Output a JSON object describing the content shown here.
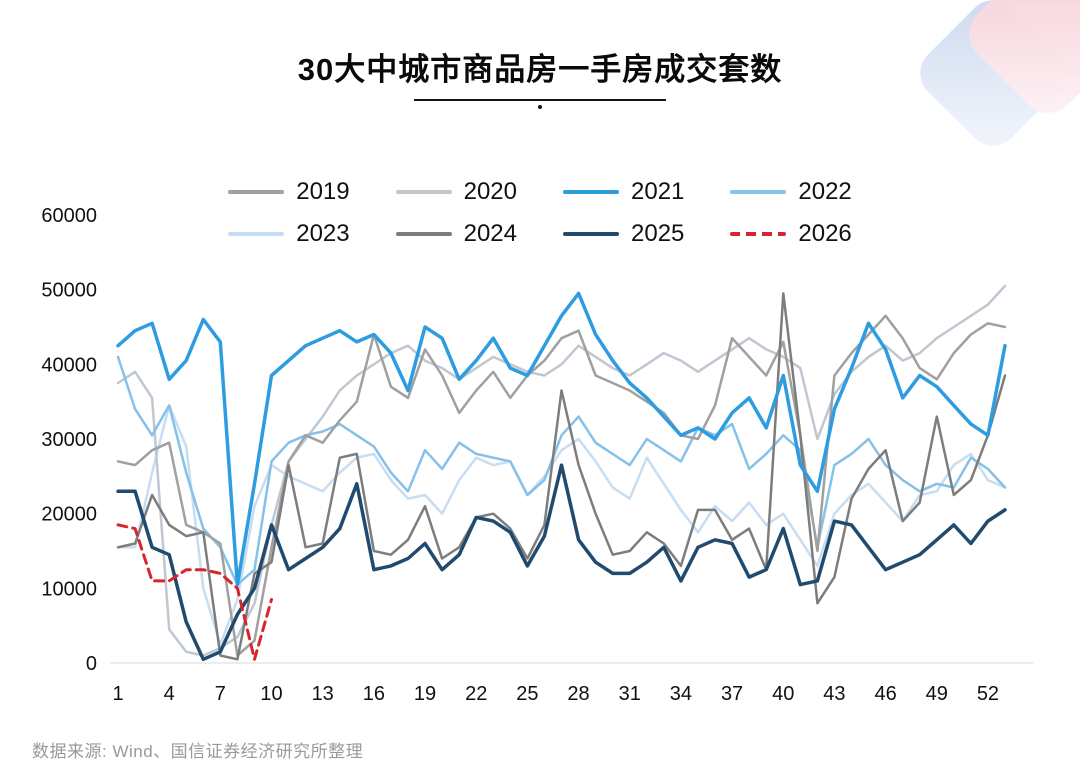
{
  "page": {
    "title": "30大中城市商品房一手房成交套数",
    "footer": "数据来源: Wind、国信证券经济研究所整理"
  },
  "chart_data": {
    "type": "line",
    "title": "30大中城市商品房一手房成交套数",
    "xlabel": "",
    "ylabel": "",
    "x_range": [
      1,
      53
    ],
    "ylim": [
      0,
      60000
    ],
    "yticks": [
      0,
      10000,
      20000,
      30000,
      40000,
      50000,
      60000
    ],
    "xticks": [
      1,
      4,
      7,
      10,
      13,
      16,
      19,
      22,
      25,
      28,
      31,
      34,
      37,
      40,
      43,
      46,
      49,
      52
    ],
    "grid": false,
    "legend_position": "top",
    "series": [
      {
        "name": "2019",
        "color": "#a0a0a0",
        "dashed": false,
        "width": 2.5,
        "z": 4,
        "values": [
          27000,
          26500,
          28500,
          29500,
          18500,
          17500,
          16000,
          1000,
          3000,
          15500,
          27000,
          30500,
          29500,
          32500,
          35000,
          44000,
          37000,
          35500,
          42000,
          38500,
          33500,
          36500,
          39000,
          35500,
          38500,
          40500,
          43500,
          44500,
          38500,
          37500,
          36500,
          35000,
          33500,
          30500,
          30000,
          34500,
          43500,
          41000,
          38500,
          43000,
          30500,
          15000,
          38500,
          41500,
          44000,
          46500,
          43500,
          39500,
          38000,
          41500,
          44000,
          45500,
          45000
        ]
      },
      {
        "name": "2020",
        "color": "#bfc7d1",
        "dashed": false,
        "width": 2.5,
        "z": 2,
        "values": [
          37500,
          39000,
          35500,
          4500,
          1500,
          1000,
          2000,
          3500,
          8000,
          18500,
          27000,
          30000,
          33000,
          36500,
          38500,
          40000,
          41500,
          42500,
          40500,
          39500,
          38000,
          39500,
          41000,
          40000,
          39000,
          38500,
          40000,
          42500,
          41000,
          39500,
          38500,
          40000,
          41500,
          40500,
          39000,
          40500,
          42000,
          43500,
          42000,
          41000,
          39500,
          30000,
          36000,
          39000,
          41000,
          42500,
          40500,
          41500,
          43500,
          45000,
          46500,
          48000,
          50500
        ]
      },
      {
        "name": "2021",
        "color": "#2d9ce0",
        "dashed": false,
        "width": 3.5,
        "z": 6,
        "values": [
          42500,
          44500,
          45500,
          38000,
          40500,
          46000,
          43000,
          10500,
          24000,
          38500,
          40500,
          42500,
          43500,
          44500,
          43000,
          44000,
          41500,
          36500,
          45000,
          43500,
          38000,
          40500,
          43500,
          39500,
          38500,
          42500,
          46500,
          49500,
          44000,
          40500,
          37500,
          35500,
          33000,
          30500,
          31500,
          30000,
          33500,
          35500,
          31500,
          38500,
          26500,
          23000,
          34000,
          39500,
          45500,
          42000,
          35500,
          38500,
          37000,
          34500,
          32000,
          30500,
          42500
        ]
      },
      {
        "name": "2022",
        "color": "#85c1e8",
        "dashed": false,
        "width": 2.5,
        "z": 3,
        "values": [
          41000,
          34000,
          30500,
          34500,
          25500,
          18000,
          15500,
          10500,
          12500,
          27000,
          29500,
          30500,
          31000,
          32000,
          30500,
          29000,
          25500,
          23000,
          28500,
          26000,
          29500,
          28000,
          27500,
          27000,
          22500,
          24500,
          30500,
          33000,
          29500,
          28000,
          26500,
          30000,
          28500,
          27000,
          31500,
          30500,
          32000,
          26000,
          28000,
          30500,
          28500,
          15500,
          26500,
          28000,
          30000,
          26500,
          24500,
          23000,
          24000,
          23500,
          27500,
          26000,
          23500
        ]
      },
      {
        "name": "2023",
        "color": "#c7ddf1",
        "dashed": false,
        "width": 2.5,
        "z": 1,
        "values": [
          15500,
          15500,
          25500,
          34500,
          29000,
          10000,
          2500,
          8500,
          21000,
          26500,
          25000,
          24000,
          23000,
          25500,
          27500,
          28000,
          24500,
          22000,
          22500,
          20000,
          24500,
          27500,
          26500,
          27000,
          22500,
          25000,
          28500,
          30000,
          27000,
          23500,
          22000,
          27500,
          24000,
          20500,
          17500,
          21000,
          19000,
          21500,
          18500,
          20000,
          16500,
          13000,
          20000,
          22500,
          24000,
          21500,
          19000,
          22500,
          23000,
          26500,
          28000,
          24500,
          23500
        ]
      },
      {
        "name": "2024",
        "color": "#7d7d7d",
        "dashed": false,
        "width": 2.5,
        "z": 5,
        "values": [
          15500,
          16000,
          22500,
          18500,
          17000,
          17500,
          1000,
          500,
          12000,
          13500,
          26500,
          15500,
          16000,
          27500,
          28000,
          15000,
          14500,
          16500,
          21000,
          14000,
          15500,
          19500,
          20000,
          18000,
          14000,
          18500,
          36500,
          26500,
          20000,
          14500,
          15000,
          17500,
          16000,
          13000,
          20500,
          20500,
          16500,
          18000,
          12500,
          49500,
          30500,
          8000,
          11500,
          22000,
          26000,
          28500,
          19000,
          21500,
          33000,
          22500,
          24500,
          30500,
          38500
        ]
      },
      {
        "name": "2025",
        "color": "#214a6f",
        "dashed": false,
        "width": 3.5,
        "z": 7,
        "values": [
          23000,
          23000,
          15500,
          14500,
          5500,
          500,
          1500,
          6500,
          10000,
          18500,
          12500,
          14000,
          15500,
          18000,
          24000,
          12500,
          13000,
          14000,
          16000,
          12500,
          14500,
          19500,
          19000,
          17500,
          13000,
          17000,
          26500,
          16500,
          13500,
          12000,
          12000,
          13500,
          15500,
          11000,
          15500,
          16500,
          16000,
          11500,
          12500,
          18000,
          10500,
          11000,
          19000,
          18500,
          15500,
          12500,
          13500,
          14500,
          16500,
          18500,
          16000,
          19000,
          20500
        ]
      },
      {
        "name": "2026",
        "color": "#d8252b",
        "dashed": true,
        "width": 3,
        "z": 8,
        "values": [
          18500,
          18000,
          11000,
          11000,
          12500,
          12500,
          12000,
          10000,
          500,
          8500
        ]
      }
    ]
  }
}
